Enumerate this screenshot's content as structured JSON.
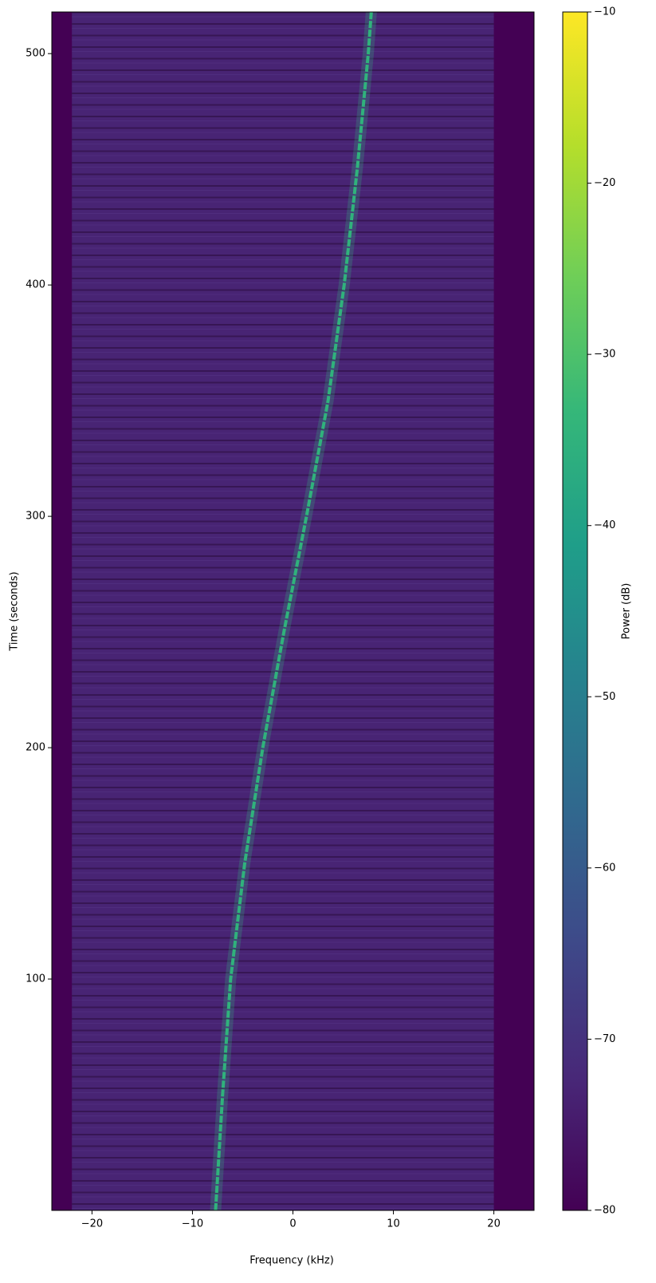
{
  "chart_data": {
    "type": "spectrogram",
    "x_label": "Frequency (kHz)",
    "y_label": "Time (seconds)",
    "colorbar_label": "Power (dB)",
    "xlim": [
      -24,
      24
    ],
    "ylim": [
      0,
      518
    ],
    "xticks": [
      {
        "value": -20,
        "label": "−20"
      },
      {
        "value": -10,
        "label": "−10"
      },
      0,
      10,
      20
    ],
    "yticks": [
      100,
      200,
      300,
      400,
      500
    ],
    "clim": [
      -80,
      -10
    ],
    "cticks": [
      {
        "value": -10,
        "label": "−10"
      },
      {
        "value": -20,
        "label": "−20"
      },
      {
        "value": -30,
        "label": "−30"
      },
      {
        "value": -40,
        "label": "−40"
      },
      {
        "value": -50,
        "label": "−50"
      },
      {
        "value": -60,
        "label": "−60"
      },
      {
        "value": -70,
        "label": "−70"
      },
      {
        "value": -80,
        "label": "−80"
      }
    ],
    "colormap": [
      "#440154",
      "#482878",
      "#3e4989",
      "#31688e",
      "#26828e",
      "#1f9e89",
      "#35b779",
      "#6ece58",
      "#b5de2b",
      "#fde725"
    ],
    "floor_power": -80,
    "noise_power": -73,
    "noise_span": [
      -22,
      20
    ],
    "track": {
      "time": [
        0,
        50,
        100,
        150,
        200,
        250,
        300,
        350,
        400,
        450,
        500,
        518
      ],
      "frequency": [
        -7.7,
        -7.0,
        -6.2,
        -4.8,
        -3.0,
        -0.9,
        1.35,
        3.5,
        5.1,
        6.4,
        7.5,
        7.8
      ],
      "power": -35
    }
  }
}
